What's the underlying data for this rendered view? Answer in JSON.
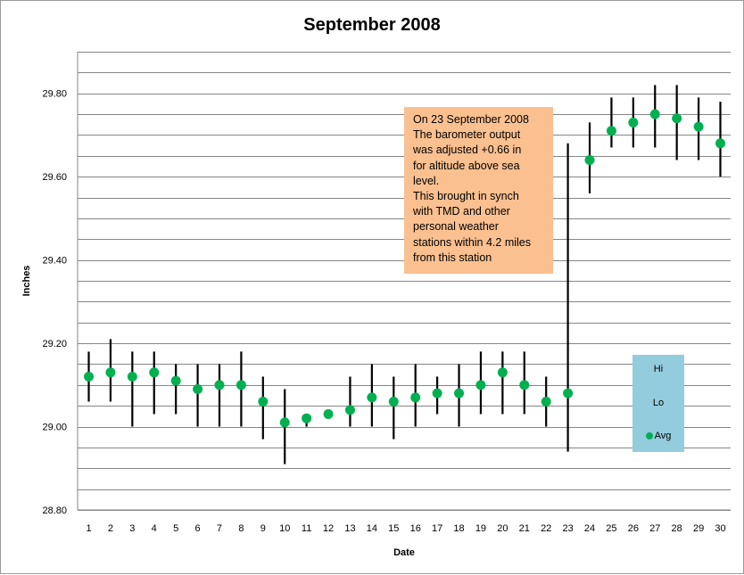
{
  "chart_data": {
    "type": "scatter",
    "title": "September 2008",
    "xlabel": "Date",
    "ylabel": "Inches",
    "categories": [
      "1",
      "2",
      "3",
      "4",
      "5",
      "6",
      "7",
      "8",
      "9",
      "10",
      "11",
      "12",
      "13",
      "14",
      "15",
      "16",
      "17",
      "18",
      "19",
      "20",
      "21",
      "22",
      "23",
      "24",
      "25",
      "26",
      "27",
      "28",
      "29",
      "30"
    ],
    "ylim": [
      28.8,
      29.9
    ],
    "yticks": [
      "28.80",
      "29.00",
      "29.20",
      "29.40",
      "29.60",
      "29.80"
    ],
    "grid": true,
    "legend_position": "bottom-right",
    "series": [
      {
        "name": "Hi",
        "values": [
          29.18,
          29.21,
          29.18,
          29.18,
          29.15,
          29.15,
          29.15,
          29.18,
          29.12,
          29.09,
          29.03,
          29.04,
          29.12,
          29.15,
          29.12,
          29.15,
          29.12,
          29.15,
          29.18,
          29.18,
          29.18,
          29.12,
          29.68,
          29.73,
          29.79,
          29.79,
          29.82,
          29.82,
          29.79,
          29.78
        ]
      },
      {
        "name": "Lo",
        "values": [
          29.06,
          29.06,
          29.0,
          29.03,
          29.03,
          29.0,
          29.0,
          29.0,
          28.97,
          28.91,
          29.0,
          29.02,
          29.0,
          29.0,
          28.97,
          29.0,
          29.03,
          29.0,
          29.03,
          29.03,
          29.03,
          29.0,
          28.94,
          29.56,
          29.67,
          29.67,
          29.67,
          29.64,
          29.64,
          29.6
        ]
      },
      {
        "name": "Avg",
        "values": [
          29.12,
          29.13,
          29.12,
          29.13,
          29.11,
          29.09,
          29.1,
          29.1,
          29.06,
          29.01,
          29.02,
          29.03,
          29.04,
          29.07,
          29.06,
          29.07,
          29.08,
          29.08,
          29.1,
          29.13,
          29.1,
          29.06,
          29.08,
          29.64,
          29.71,
          29.73,
          29.75,
          29.74,
          29.72,
          29.68
        ]
      }
    ],
    "annotation": [
      "On 23 September 2008",
      "The barometer  output",
      "was adjusted +0.66 in",
      "for altitude above sea",
      "level.",
      "This brought in synch",
      "with TMD and other",
      "personal weather",
      "stations within 4.2 miles",
      "from this station"
    ],
    "colors": {
      "avg_marker": "#00b050",
      "range_line": "#000000",
      "gridline": "#868686",
      "annotation_bg": "#fac090",
      "legend_bg": "#93cddd"
    }
  }
}
